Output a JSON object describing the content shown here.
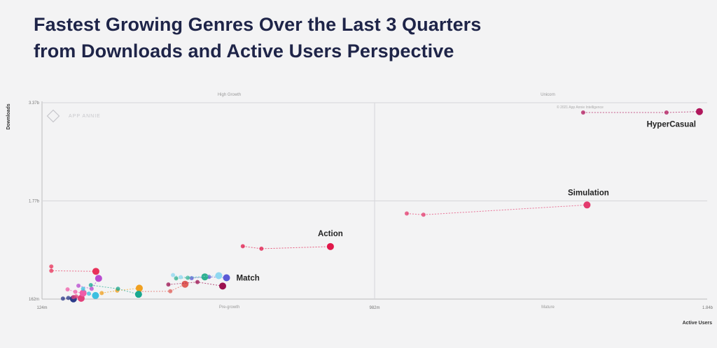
{
  "title": {
    "line1": "Fastest Growing Genres Over the Last 3 Quarters",
    "line2": "from Downloads and Active Users Perspective"
  },
  "watermark": "APP ANNIE",
  "copyright": "© 2021 App Annie Intelligence",
  "colors": {
    "background": "#f3f3f4",
    "title": "#1e2448",
    "gridline": "#d6d6da"
  },
  "chart_data": {
    "type": "scatter",
    "xlabel": "Active Users",
    "ylabel": "Downloads",
    "x_ticks": [
      "124m",
      "982m",
      "1.84b"
    ],
    "y_ticks": [
      "162m",
      "1.77b",
      "3.37b"
    ],
    "xlim": [
      124,
      1840
    ],
    "ylim": [
      162,
      3370
    ],
    "quadrants": {
      "top_left": "High Growth",
      "top_right": "Unicorn",
      "bottom_left": "Pre-growth",
      "bottom_right": "Mature"
    },
    "labeled_points": [
      "HyperCasual",
      "Simulation",
      "Action",
      "Match"
    ],
    "series": [
      {
        "name": "HyperCasual",
        "color": "#b0175c",
        "points": [
          [
            1520,
            3210
          ],
          [
            1735,
            3210
          ],
          [
            1820,
            3225
          ]
        ]
      },
      {
        "name": "Simulation",
        "color": "#e33a6e",
        "points": [
          [
            1065,
            1560
          ],
          [
            1108,
            1540
          ],
          [
            1530,
            1700
          ]
        ]
      },
      {
        "name": "Action",
        "color": "#e0184a",
        "points": [
          [
            642,
            1025
          ],
          [
            690,
            985
          ],
          [
            868,
            1020
          ]
        ]
      },
      {
        "name": "Match",
        "color": "#5a5ad6",
        "points": [
          [
            510,
            505
          ],
          [
            555,
            525
          ],
          [
            600,
            510
          ]
        ]
      },
      {
        "name": "",
        "color": "#e8315a",
        "points": [
          [
            148,
            695
          ],
          [
            148,
            625
          ],
          [
            263,
            615
          ]
        ]
      },
      {
        "name": "",
        "color": "#e0605a",
        "points": [
          [
            375,
            285
          ],
          [
            455,
            290
          ],
          [
            493,
            405
          ]
        ]
      },
      {
        "name": "",
        "color": "#9b1050",
        "points": [
          [
            450,
            400
          ],
          [
            525,
            440
          ],
          [
            590,
            375
          ]
        ]
      },
      {
        "name": "",
        "color": "#2fb08f",
        "points": [
          [
            470,
            500
          ],
          [
            500,
            510
          ],
          [
            544,
            525
          ]
        ]
      },
      {
        "name": "",
        "color": "#f0a020",
        "points": [
          [
            278,
            260
          ],
          [
            318,
            300
          ],
          [
            375,
            340
          ]
        ]
      },
      {
        "name": "",
        "color": "#19a890",
        "points": [
          [
            250,
            390
          ],
          [
            320,
            330
          ],
          [
            373,
            240
          ]
        ]
      },
      {
        "name": "",
        "color": "#2b3a8a",
        "points": [
          [
            178,
            170
          ],
          [
            192,
            180
          ],
          [
            205,
            165
          ]
        ]
      },
      {
        "name": "",
        "color": "#e2407a",
        "points": [
          [
            205,
            195
          ],
          [
            212,
            205
          ],
          [
            225,
            175
          ]
        ]
      },
      {
        "name": "",
        "color": "#b84bd0",
        "points": [
          [
            218,
            380
          ],
          [
            252,
            330
          ],
          [
            270,
            500
          ]
        ]
      },
      {
        "name": "",
        "color": "#ef5da8",
        "points": [
          [
            190,
            320
          ],
          [
            210,
            280
          ],
          [
            230,
            260
          ]
        ]
      },
      {
        "name": "",
        "color": "#3cc0e0",
        "points": [
          [
            230,
            330
          ],
          [
            245,
            250
          ],
          [
            262,
            220
          ]
        ]
      },
      {
        "name": "",
        "color": "#8fd8f0",
        "points": [
          [
            462,
            555
          ],
          [
            482,
            520
          ],
          [
            580,
            545
          ]
        ]
      }
    ]
  }
}
